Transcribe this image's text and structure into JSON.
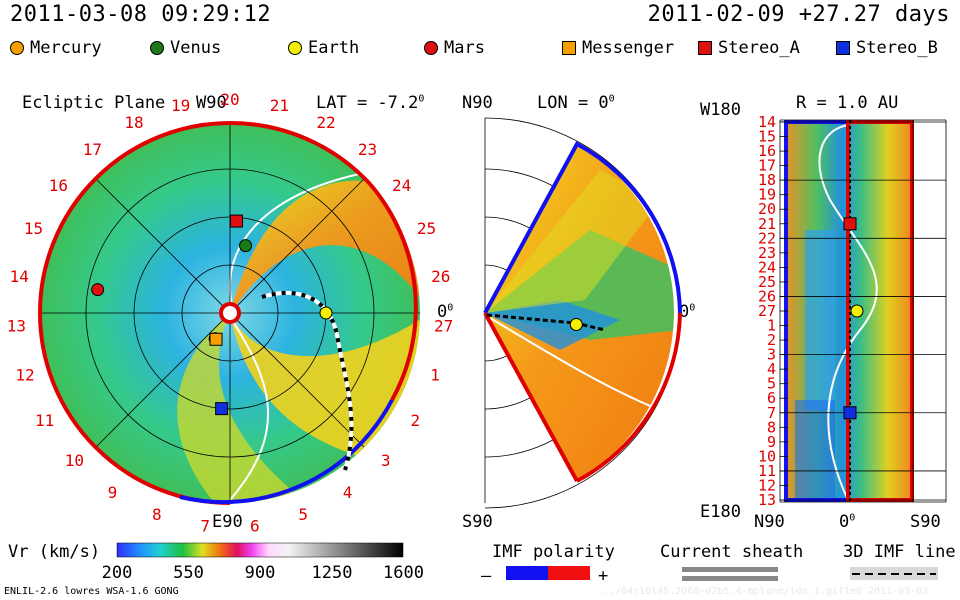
{
  "header": {
    "left_datetime": "2011-03-08 09:29:12",
    "right_datetime": "2011-02-09 +27.27 days"
  },
  "legend": [
    {
      "label": "Mercury",
      "shape": "circle",
      "color": "#f5a000"
    },
    {
      "label": "Venus",
      "shape": "circle",
      "color": "#1a7a1a"
    },
    {
      "label": "Earth",
      "shape": "circle",
      "color": "#f5f000"
    },
    {
      "label": "Mars",
      "shape": "circle",
      "color": "#e01010"
    },
    {
      "label": "Messenger",
      "shape": "square",
      "color": "#f5a000"
    },
    {
      "label": "Stereo_A",
      "shape": "square",
      "color": "#e01010"
    },
    {
      "label": "Stereo_B",
      "shape": "square",
      "color": "#1030e0"
    }
  ],
  "panel1": {
    "title": "Ecliptic Plane",
    "top_label": "W90",
    "lat_label": "LAT = -7.2",
    "lat_sup": "0",
    "right_label": "0",
    "right_sup": "0",
    "bottom_label": "E90",
    "rotation_labels": [
      "20",
      "21",
      "22",
      "23",
      "24",
      "25",
      "26",
      "27",
      "1",
      "2",
      "3",
      "4",
      "5",
      "6",
      "7",
      "8",
      "9",
      "10",
      "11",
      "12",
      "13",
      "14",
      "15",
      "16",
      "17",
      "18",
      "19"
    ]
  },
  "panel2": {
    "top_label": "N90",
    "lon_label": "LON = 0",
    "lon_sup": "0",
    "right_label": "0",
    "right_sup": "0",
    "bottom_label": "S90"
  },
  "panel3": {
    "top_left_label": "W180",
    "r_label": "R = 1.0 AU",
    "bottom_left_label": "E180",
    "x_labels": [
      "N90",
      "0",
      "S90"
    ],
    "x_mid_sup": "0",
    "row_labels": [
      "14",
      "15",
      "16",
      "17",
      "18",
      "19",
      "20",
      "21",
      "22",
      "23",
      "24",
      "25",
      "26",
      "27",
      "1",
      "2",
      "3",
      "4",
      "5",
      "6",
      "7",
      "8",
      "9",
      "10",
      "11",
      "12",
      "13"
    ]
  },
  "colorbar": {
    "label": "Vr (km/s)",
    "ticks": [
      "200",
      "550",
      "900",
      "1250",
      "1600"
    ],
    "range": [
      200,
      1600
    ]
  },
  "imf": {
    "title": "IMF polarity",
    "minus": "–",
    "plus": "+",
    "colors": [
      "#1010f0",
      "#f01010"
    ]
  },
  "sheath": {
    "title": "Current sheath"
  },
  "imfline": {
    "title": "3D IMF line"
  },
  "footer": {
    "left": "ENLIL-2.6 lowres WSA-1.6 GONG",
    "right": ".../64r16t45.2068-d2b5.4-mplane/lde_1.gif1e0   2011-03-03"
  },
  "chart_data": [
    {
      "type": "polar-heatmap",
      "title": "Ecliptic Plane",
      "quantity": "Vr (km/s)",
      "bodies": [
        {
          "name": "Earth",
          "marker": "circle",
          "angle_deg": 0,
          "radius_au": 1.0
        },
        {
          "name": "Venus",
          "marker": "circle",
          "angle_deg": 77,
          "radius_au": 0.72
        },
        {
          "name": "Mercury",
          "marker": "circle",
          "angle_deg": 240,
          "radius_au": 0.31
        },
        {
          "name": "Mars",
          "marker": "circle",
          "angle_deg": 170,
          "radius_au": 1.4
        },
        {
          "name": "Messenger",
          "marker": "square",
          "angle_deg": 242,
          "radius_au": 0.31
        },
        {
          "name": "Stereo_A",
          "marker": "square",
          "angle_deg": 86,
          "radius_au": 0.96
        },
        {
          "name": "Stereo_B",
          "marker": "square",
          "angle_deg": 265,
          "radius_au": 1.0
        }
      ]
    },
    {
      "type": "meridional-heatmap",
      "title": "LON = 0",
      "quantity": "Vr (km/s)",
      "bodies": [
        {
          "name": "Earth",
          "marker": "circle",
          "lat_deg": -7.2,
          "radius_au": 1.0
        }
      ]
    },
    {
      "type": "heatmap",
      "title": "R = 1.0 AU",
      "quantity": "Vr (km/s)",
      "bodies": [
        {
          "name": "Stereo_A",
          "marker": "square",
          "row": "21"
        },
        {
          "name": "Earth",
          "marker": "circle",
          "row": "27"
        },
        {
          "name": "Stereo_B",
          "marker": "square",
          "row": "7"
        }
      ]
    }
  ]
}
